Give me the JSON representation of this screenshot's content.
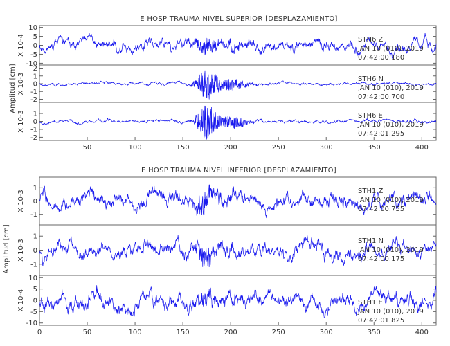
{
  "chart_data": [
    {
      "type": "line",
      "title": "E HOSP TRAUMA NIVEL SUPERIOR [DESPLAZAMIENTO]",
      "ylabel": "Amplitud [cm]",
      "xlim": [
        0,
        415
      ],
      "x_ticks": [
        "50",
        "100",
        "150",
        "200",
        "250",
        "300",
        "350",
        "400"
      ],
      "panels": [
        {
          "scale_label": "X 10-4",
          "ylim": [
            -11,
            11
          ],
          "y_ticks": [
            "10",
            "5",
            "0",
            "-5",
            "-10"
          ],
          "station": "STH6   Z",
          "date": "JAN 10 (010), 2019",
          "time": "07:42:00.180",
          "trace": {
            "amplitude": 5,
            "burst_amplitude": 5,
            "burst_center": 175,
            "seed": 11
          }
        },
        {
          "scale_label": "X 10-3",
          "ylim": [
            -2.4,
            2.4
          ],
          "y_ticks": [
            "2",
            "1",
            "0",
            "-1",
            "-2"
          ],
          "station": "STH6   N",
          "date": "JAN 10 (010), 2019",
          "time": "07:42:00.700",
          "trace": {
            "amplitude": 0.3,
            "burst_amplitude": 2.0,
            "burst_center": 175,
            "seed": 23
          }
        },
        {
          "scale_label": "X 10-3",
          "ylim": [
            -2.4,
            2.4
          ],
          "y_ticks": [
            "1",
            "0",
            "-1",
            "-2"
          ],
          "station": "STH6   E",
          "date": "JAN 10 (010), 2019",
          "time": "07:42:01.295",
          "trace": {
            "amplitude": 0.35,
            "burst_amplitude": 2.2,
            "burst_center": 175,
            "seed": 37
          }
        }
      ]
    },
    {
      "type": "line",
      "title": "E HOSP TRAUMA NIVEL INFERIOR [DESPLAZAMIENTO]",
      "ylabel": "Amplitud [cm]",
      "xlim": [
        0,
        415
      ],
      "x_ticks": [
        "0",
        "50",
        "100",
        "150",
        "200",
        "250",
        "300",
        "350",
        "400"
      ],
      "panels": [
        {
          "scale_label": "X 10-3",
          "ylim": [
            -1.8,
            1.8
          ],
          "y_ticks": [
            "1",
            "0",
            "-1"
          ],
          "station": "STH1   Z",
          "date": "JAN 10 (010), 2019",
          "time": "07:42:00.755",
          "trace": {
            "amplitude": 0.9,
            "burst_amplitude": 0.6,
            "burst_center": 172,
            "seed": 41
          }
        },
        {
          "scale_label": "X 10-3",
          "ylim": [
            -1.8,
            1.8
          ],
          "y_ticks": [
            "1",
            "0",
            "-1"
          ],
          "station": "STH1   N",
          "date": "JAN 10 (010), 2019",
          "time": "07:42:00.175",
          "trace": {
            "amplitude": 0.9,
            "burst_amplitude": 0.6,
            "burst_center": 172,
            "seed": 53
          }
        },
        {
          "scale_label": "X 10-4",
          "ylim": [
            -11,
            11
          ],
          "y_ticks": [
            "10",
            "5",
            "0",
            "-5",
            "-10"
          ],
          "station": "STH1   E",
          "date": "JAN 10 (010), 2019",
          "time": "07:42:01.825",
          "trace": {
            "amplitude": 6,
            "burst_amplitude": 2,
            "burst_center": 172,
            "seed": 67
          }
        }
      ]
    }
  ]
}
